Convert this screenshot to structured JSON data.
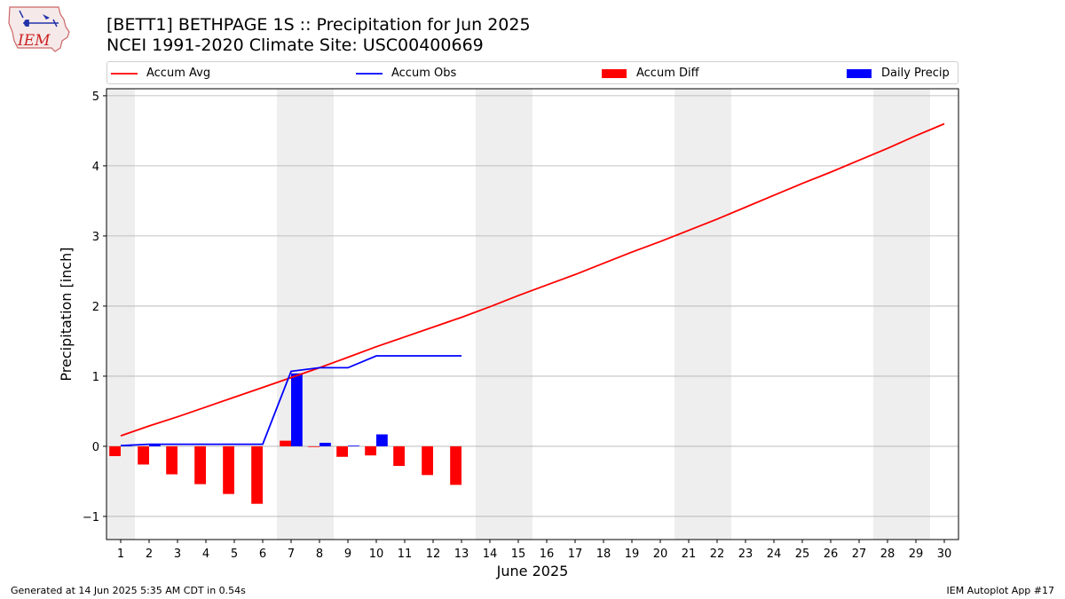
{
  "header": {
    "title_line1": "[BETT1] BETHPAGE 1S :: Precipitation for Jun 2025",
    "title_line2": "NCEI 1991-2020 Climate Site: USC00400669",
    "logo_text": "IEM"
  },
  "footer": {
    "generated": "Generated at 14 Jun 2025 5:35 AM CDT in 0.54s",
    "app": "IEM Autoplot App #17"
  },
  "colors": {
    "avg": "#ff0000",
    "obs": "#0000ff",
    "diff": "#ff0000",
    "daily": "#0000ff",
    "weekend": "#eeeeee",
    "grid": "#b0b0b0"
  },
  "chart_data": {
    "type": "bar",
    "title": "[BETT1] BETHPAGE 1S :: Precipitation for Jun 2025",
    "subtitle": "NCEI 1991-2020 Climate Site: USC00400669",
    "xlabel": "June 2025",
    "ylabel": "Precipitation [inch]",
    "xlim": [
      0.5,
      30.5
    ],
    "ylim": [
      -1.33,
      5.1
    ],
    "x_ticks": [
      1,
      2,
      3,
      4,
      5,
      6,
      7,
      8,
      9,
      10,
      11,
      12,
      13,
      14,
      15,
      16,
      17,
      18,
      19,
      20,
      21,
      22,
      23,
      24,
      25,
      26,
      27,
      28,
      29,
      30
    ],
    "y_ticks": [
      -1,
      0,
      1,
      2,
      3,
      4,
      5
    ],
    "y_tick_labels": [
      "−1",
      "0",
      "1",
      "2",
      "3",
      "4",
      "5"
    ],
    "grid": "horizontal",
    "legend_position": "top",
    "weekend_spans": [
      [
        0.5,
        1.5
      ],
      [
        6.5,
        8.5
      ],
      [
        13.5,
        15.5
      ],
      [
        20.5,
        22.5
      ],
      [
        27.5,
        29.5
      ]
    ],
    "series": [
      {
        "name": "Accum Avg",
        "kind": "line",
        "x": [
          1,
          2,
          3,
          4,
          5,
          6,
          7,
          8,
          9,
          10,
          11,
          12,
          13,
          14,
          15,
          16,
          17,
          18,
          19,
          20,
          21,
          22,
          23,
          24,
          25,
          26,
          27,
          28,
          29,
          30
        ],
        "values": [
          0.15,
          0.29,
          0.42,
          0.56,
          0.7,
          0.84,
          0.98,
          1.12,
          1.27,
          1.42,
          1.56,
          1.7,
          1.84,
          1.99,
          2.15,
          2.3,
          2.45,
          2.61,
          2.77,
          2.92,
          3.08,
          3.24,
          3.41,
          3.58,
          3.75,
          3.91,
          4.08,
          4.25,
          4.43,
          4.6
        ]
      },
      {
        "name": "Accum Obs",
        "kind": "line",
        "x": [
          1,
          2,
          3,
          4,
          5,
          6,
          7,
          8,
          9,
          10,
          11,
          12,
          13
        ],
        "values": [
          0.01,
          0.03,
          0.03,
          0.03,
          0.03,
          0.03,
          1.07,
          1.12,
          1.12,
          1.29,
          1.29,
          1.29,
          1.29
        ]
      },
      {
        "name": "Accum Diff",
        "kind": "bar",
        "x": [
          1,
          2,
          3,
          4,
          5,
          6,
          7,
          8,
          9,
          10,
          11,
          12,
          13
        ],
        "values": [
          -0.14,
          -0.26,
          -0.4,
          -0.54,
          -0.68,
          -0.82,
          0.08,
          -0.01,
          -0.15,
          -0.13,
          -0.28,
          -0.41,
          -0.55
        ]
      },
      {
        "name": "Daily Precip",
        "kind": "bar",
        "x": [
          1,
          2,
          3,
          4,
          5,
          6,
          7,
          8,
          9,
          10,
          11,
          12,
          13
        ],
        "values": [
          0.01,
          0.02,
          0,
          0,
          0,
          0,
          1.04,
          0.05,
          0.01,
          0.17,
          0,
          0,
          0
        ]
      }
    ]
  }
}
